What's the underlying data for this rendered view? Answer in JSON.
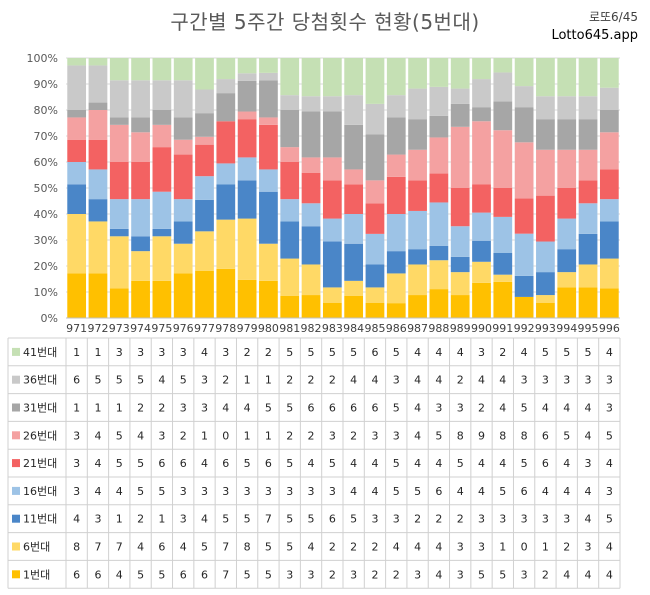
{
  "header": {
    "title": "구간별 5주간 당첨횟수 현황(5번대)",
    "brand_line1": "로또6/45",
    "brand_line2": "Lotto645.app"
  },
  "chart_data": {
    "type": "bar",
    "stacked": "percent",
    "title": "구간별 5주간 당첨횟수 현황(5번대)",
    "categories": [
      "971",
      "972",
      "973",
      "974",
      "975",
      "976",
      "977",
      "978",
      "979",
      "980",
      "981",
      "982",
      "983",
      "984",
      "985",
      "986",
      "987",
      "988",
      "989",
      "990",
      "991",
      "992",
      "993",
      "994",
      "995",
      "996"
    ],
    "y_ticks": [
      "0%",
      "10%",
      "20%",
      "30%",
      "40%",
      "50%",
      "60%",
      "70%",
      "80%",
      "90%",
      "100%"
    ],
    "ylim": [
      0,
      100
    ],
    "grid": true,
    "legend": "table-left",
    "series": [
      {
        "name": "1번대",
        "color": "#FFC000",
        "values": [
          6,
          6,
          4,
          5,
          5,
          6,
          6,
          7,
          5,
          5,
          3,
          3,
          2,
          3,
          2,
          2,
          3,
          4,
          3,
          5,
          5,
          3,
          2,
          4,
          4,
          4
        ]
      },
      {
        "name": "6번대",
        "color": "#FFD966",
        "values": [
          8,
          7,
          7,
          4,
          6,
          4,
          5,
          7,
          8,
          5,
          5,
          4,
          2,
          2,
          2,
          4,
          4,
          4,
          3,
          3,
          1,
          0,
          1,
          2,
          3,
          4
        ]
      },
      {
        "name": "11번대",
        "color": "#4A86C8",
        "values": [
          4,
          3,
          1,
          2,
          1,
          3,
          4,
          5,
          5,
          7,
          5,
          5,
          6,
          5,
          3,
          3,
          2,
          2,
          2,
          3,
          3,
          3,
          3,
          3,
          4,
          5
        ]
      },
      {
        "name": "16번대",
        "color": "#9DC3E6",
        "values": [
          3,
          4,
          4,
          5,
          5,
          3,
          3,
          3,
          3,
          3,
          3,
          3,
          3,
          4,
          4,
          5,
          5,
          6,
          4,
          4,
          5,
          6,
          4,
          4,
          4,
          3
        ]
      },
      {
        "name": "21번대",
        "color": "#F36262",
        "values": [
          3,
          4,
          5,
          5,
          6,
          6,
          4,
          6,
          5,
          6,
          5,
          4,
          5,
          4,
          4,
          5,
          4,
          4,
          5,
          4,
          4,
          5,
          6,
          4,
          3,
          4
        ]
      },
      {
        "name": "26번대",
        "color": "#F4A1A1",
        "values": [
          3,
          4,
          5,
          4,
          3,
          2,
          1,
          0,
          1,
          1,
          2,
          2,
          3,
          2,
          3,
          3,
          4,
          5,
          8,
          9,
          8,
          8,
          6,
          5,
          4,
          5
        ]
      },
      {
        "name": "31번대",
        "color": "#A6A6A6",
        "values": [
          1,
          1,
          1,
          2,
          2,
          3,
          3,
          4,
          4,
          5,
          5,
          6,
          6,
          6,
          6,
          5,
          4,
          3,
          3,
          2,
          4,
          5,
          4,
          4,
          4,
          3
        ]
      },
      {
        "name": "36번대",
        "color": "#C9C9C9",
        "values": [
          6,
          5,
          5,
          5,
          4,
          5,
          3,
          2,
          1,
          1,
          2,
          2,
          2,
          4,
          4,
          3,
          4,
          4,
          2,
          4,
          4,
          3,
          3,
          3,
          3,
          3
        ]
      },
      {
        "name": "41번대",
        "color": "#C5E0B4",
        "values": [
          1,
          1,
          3,
          3,
          3,
          3,
          4,
          3,
          2,
          2,
          5,
          5,
          5,
          5,
          6,
          5,
          4,
          4,
          4,
          3,
          2,
          4,
          5,
          5,
          5,
          4
        ]
      }
    ]
  }
}
